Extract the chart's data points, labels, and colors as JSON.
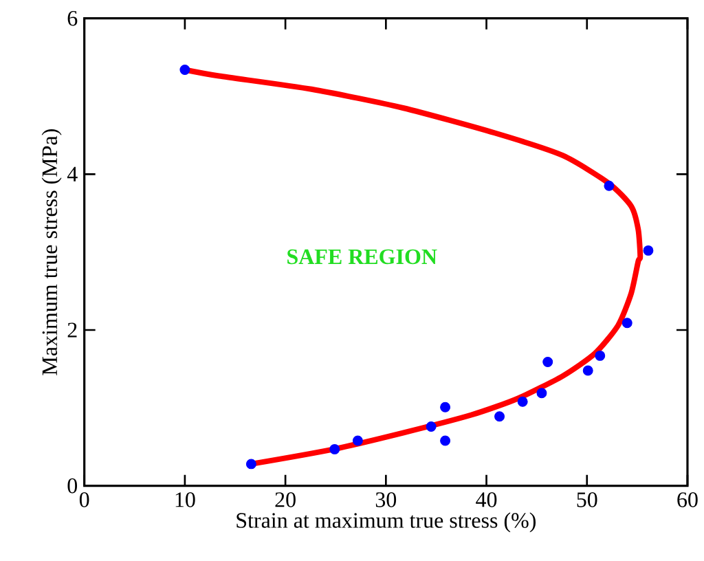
{
  "chart_data": {
    "type": "scatter",
    "xlabel": "Strain at maximum true stress (%)",
    "ylabel": "Maximum true stress (MPa)",
    "xlim": [
      0,
      60
    ],
    "ylim": [
      0,
      6
    ],
    "xticks": [
      0,
      10,
      20,
      30,
      40,
      50,
      60
    ],
    "yticks": [
      0,
      2,
      4,
      6
    ],
    "annotations": [
      "SAFE REGION"
    ],
    "series": [
      {
        "type": "line",
        "color": "#ff0000",
        "marker": "none",
        "line_style": "solid",
        "x": [
          10.0,
          13.4,
          22.6,
          31.7,
          40.8,
          47.6,
          52.2,
          54.4,
          55.1,
          55.3,
          55.1,
          54.4,
          53.1,
          50.8,
          47.6,
          43.1,
          38.5,
          31.7,
          24.8,
          16.6
        ],
        "values": [
          5.34,
          5.26,
          5.09,
          4.85,
          4.53,
          4.24,
          3.88,
          3.59,
          3.29,
          2.94,
          2.88,
          2.47,
          2.06,
          1.7,
          1.41,
          1.12,
          0.91,
          0.68,
          0.47,
          0.28
        ]
      },
      {
        "color": "#0000ff",
        "marker": "circle",
        "x": [
          10.0,
          52.2,
          56.1,
          54.0,
          51.3,
          50.1,
          46.1,
          45.5,
          43.6,
          41.3,
          35.9,
          35.9,
          34.5,
          27.2,
          24.9,
          16.6
        ],
        "values": [
          5.34,
          3.85,
          3.02,
          2.09,
          1.67,
          1.48,
          1.59,
          1.19,
          1.08,
          0.89,
          1.01,
          0.58,
          0.76,
          0.58,
          0.47,
          0.28
        ]
      }
    ]
  }
}
